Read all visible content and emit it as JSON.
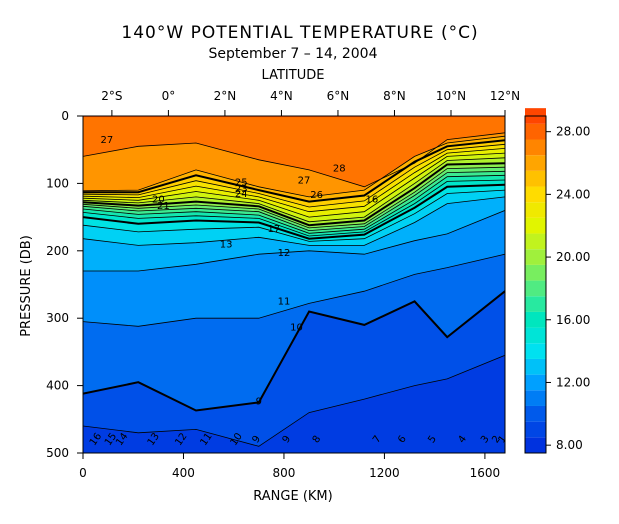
{
  "chart_data": {
    "type": "heatmap",
    "title": "140°W POTENTIAL TEMPERATURE (°C)",
    "subtitle": "September 7 – 14, 2004",
    "xlabel": "RANGE (KM)",
    "ylabel": "PRESSURE (DB)",
    "top_axis_label": "LATITUDE",
    "xlim": [
      0,
      1680
    ],
    "ylim": [
      500,
      0
    ],
    "x_ticks": [
      0,
      400,
      800,
      1200,
      1600
    ],
    "y_ticks": [
      0,
      100,
      200,
      300,
      400,
      500
    ],
    "top_ticks": [
      {
        "label": "2°S",
        "x": 115
      },
      {
        "label": "0°",
        "x": 340
      },
      {
        "label": "2°N",
        "x": 565
      },
      {
        "label": "4°N",
        "x": 790
      },
      {
        "label": "6°N",
        "x": 1015
      },
      {
        "label": "8°N",
        "x": 1240
      },
      {
        "label": "10°N",
        "x": 1465
      },
      {
        "label": "12°N",
        "x": 1690
      }
    ],
    "colorbar": {
      "min": 7.5,
      "max": 29,
      "step": 1,
      "tick_values": [
        8,
        12,
        16,
        20,
        24,
        28
      ],
      "tick_labels": [
        "8.00",
        "12.00",
        "16.00",
        "20.00",
        "24.00",
        "28.00"
      ]
    },
    "profiles": {
      "x": [
        0,
        220,
        450,
        700,
        900,
        1120,
        1320,
        1450,
        1680
      ],
      "isotherms": [
        {
          "t": 28,
          "p": [
            2,
            2,
            2,
            2,
            2,
            2,
            2,
            2,
            2
          ]
        },
        {
          "t": 27,
          "p": [
            60,
            45,
            40,
            65,
            80,
            105,
            70,
            35,
            25
          ]
        },
        {
          "t": 26,
          "p": [
            111,
            110,
            80,
            105,
            120,
            110,
            60,
            40,
            30
          ]
        },
        {
          "t": 25,
          "p": [
            113,
            113,
            88,
            110,
            127,
            118,
            68,
            45,
            36
          ]
        },
        {
          "t": 24,
          "p": [
            116,
            117,
            96,
            115,
            135,
            126,
            76,
            50,
            42
          ]
        },
        {
          "t": 23,
          "p": [
            119,
            121,
            104,
            120,
            142,
            134,
            84,
            55,
            48
          ]
        },
        {
          "t": 22,
          "p": [
            122,
            125,
            112,
            125,
            150,
            142,
            92,
            60,
            55
          ]
        },
        {
          "t": 21,
          "p": [
            125,
            129,
            120,
            130,
            157,
            150,
            100,
            66,
            62
          ]
        },
        {
          "t": 20,
          "p": [
            128,
            133,
            127,
            134,
            162,
            155,
            107,
            72,
            70
          ]
        },
        {
          "t": 19,
          "p": [
            131,
            137,
            132,
            138,
            166,
            160,
            113,
            78,
            76
          ]
        },
        {
          "t": 18,
          "p": [
            134,
            141,
            137,
            142,
            170,
            164,
            118,
            84,
            82
          ]
        },
        {
          "t": 17,
          "p": [
            138,
            146,
            142,
            147,
            174,
            168,
            124,
            90,
            88
          ]
        },
        {
          "t": 16,
          "p": [
            143,
            152,
            148,
            152,
            178,
            172,
            130,
            97,
            95
          ]
        },
        {
          "t": 15,
          "p": [
            150,
            160,
            155,
            158,
            182,
            176,
            136,
            105,
            102
          ]
        },
        {
          "t": 14,
          "p": [
            162,
            172,
            168,
            165,
            186,
            182,
            145,
            115,
            110
          ]
        },
        {
          "t": 13,
          "p": [
            182,
            192,
            188,
            180,
            192,
            192,
            158,
            130,
            120
          ]
        },
        {
          "t": 12,
          "p": [
            230,
            230,
            220,
            205,
            200,
            205,
            185,
            175,
            140
          ]
        },
        {
          "t": 11,
          "p": [
            305,
            312,
            300,
            300,
            278,
            260,
            235,
            225,
            205
          ]
        },
        {
          "t": 10,
          "p": [
            412,
            395,
            437,
            425,
            290,
            310,
            275,
            328,
            260
          ]
        },
        {
          "t": 9,
          "p": [
            460,
            470,
            465,
            490,
            440,
            420,
            400,
            390,
            355
          ]
        },
        {
          "t": 8,
          "p": [
            505,
            505,
            505,
            505,
            505,
            505,
            505,
            505,
            505
          ]
        },
        {
          "t": 7.5,
          "p": [
            505,
            505,
            505,
            505,
            505,
            505,
            505,
            505,
            505
          ]
        }
      ]
    },
    "bold_isotherms": [
      25,
      20,
      15,
      10
    ],
    "contour_labels": [
      {
        "text": "27",
        "x": 95,
        "p": 40
      },
      {
        "text": "25",
        "x": 630,
        "p": 103
      },
      {
        "text": "27",
        "x": 880,
        "p": 100
      },
      {
        "text": "28",
        "x": 1020,
        "p": 82
      },
      {
        "text": "26",
        "x": 930,
        "p": 122
      },
      {
        "text": "23",
        "x": 630,
        "p": 113
      },
      {
        "text": "24",
        "x": 630,
        "p": 120
      },
      {
        "text": "20",
        "x": 300,
        "p": 128
      },
      {
        "text": "21",
        "x": 320,
        "p": 138
      },
      {
        "text": "16",
        "x": 1150,
        "p": 128
      },
      {
        "text": "17",
        "x": 760,
        "p": 172
      },
      {
        "text": "13",
        "x": 570,
        "p": 195
      },
      {
        "text": "12",
        "x": 800,
        "p": 208
      },
      {
        "text": "11",
        "x": 800,
        "p": 280
      },
      {
        "text": "10",
        "x": 850,
        "p": 318
      },
      {
        "text": "9",
        "x": 700,
        "p": 428
      }
    ],
    "bottom_labels": [
      "16",
      "15",
      "14",
      "13",
      "12",
      "11",
      "10",
      "9",
      "9",
      "8",
      "7",
      "6",
      "5",
      "4",
      "3",
      "2",
      "1"
    ],
    "bottom_label_x": [
      60,
      120,
      165,
      290,
      400,
      500,
      620,
      700,
      820,
      940,
      1180,
      1280,
      1400,
      1520,
      1610,
      1655,
      1680
    ]
  }
}
